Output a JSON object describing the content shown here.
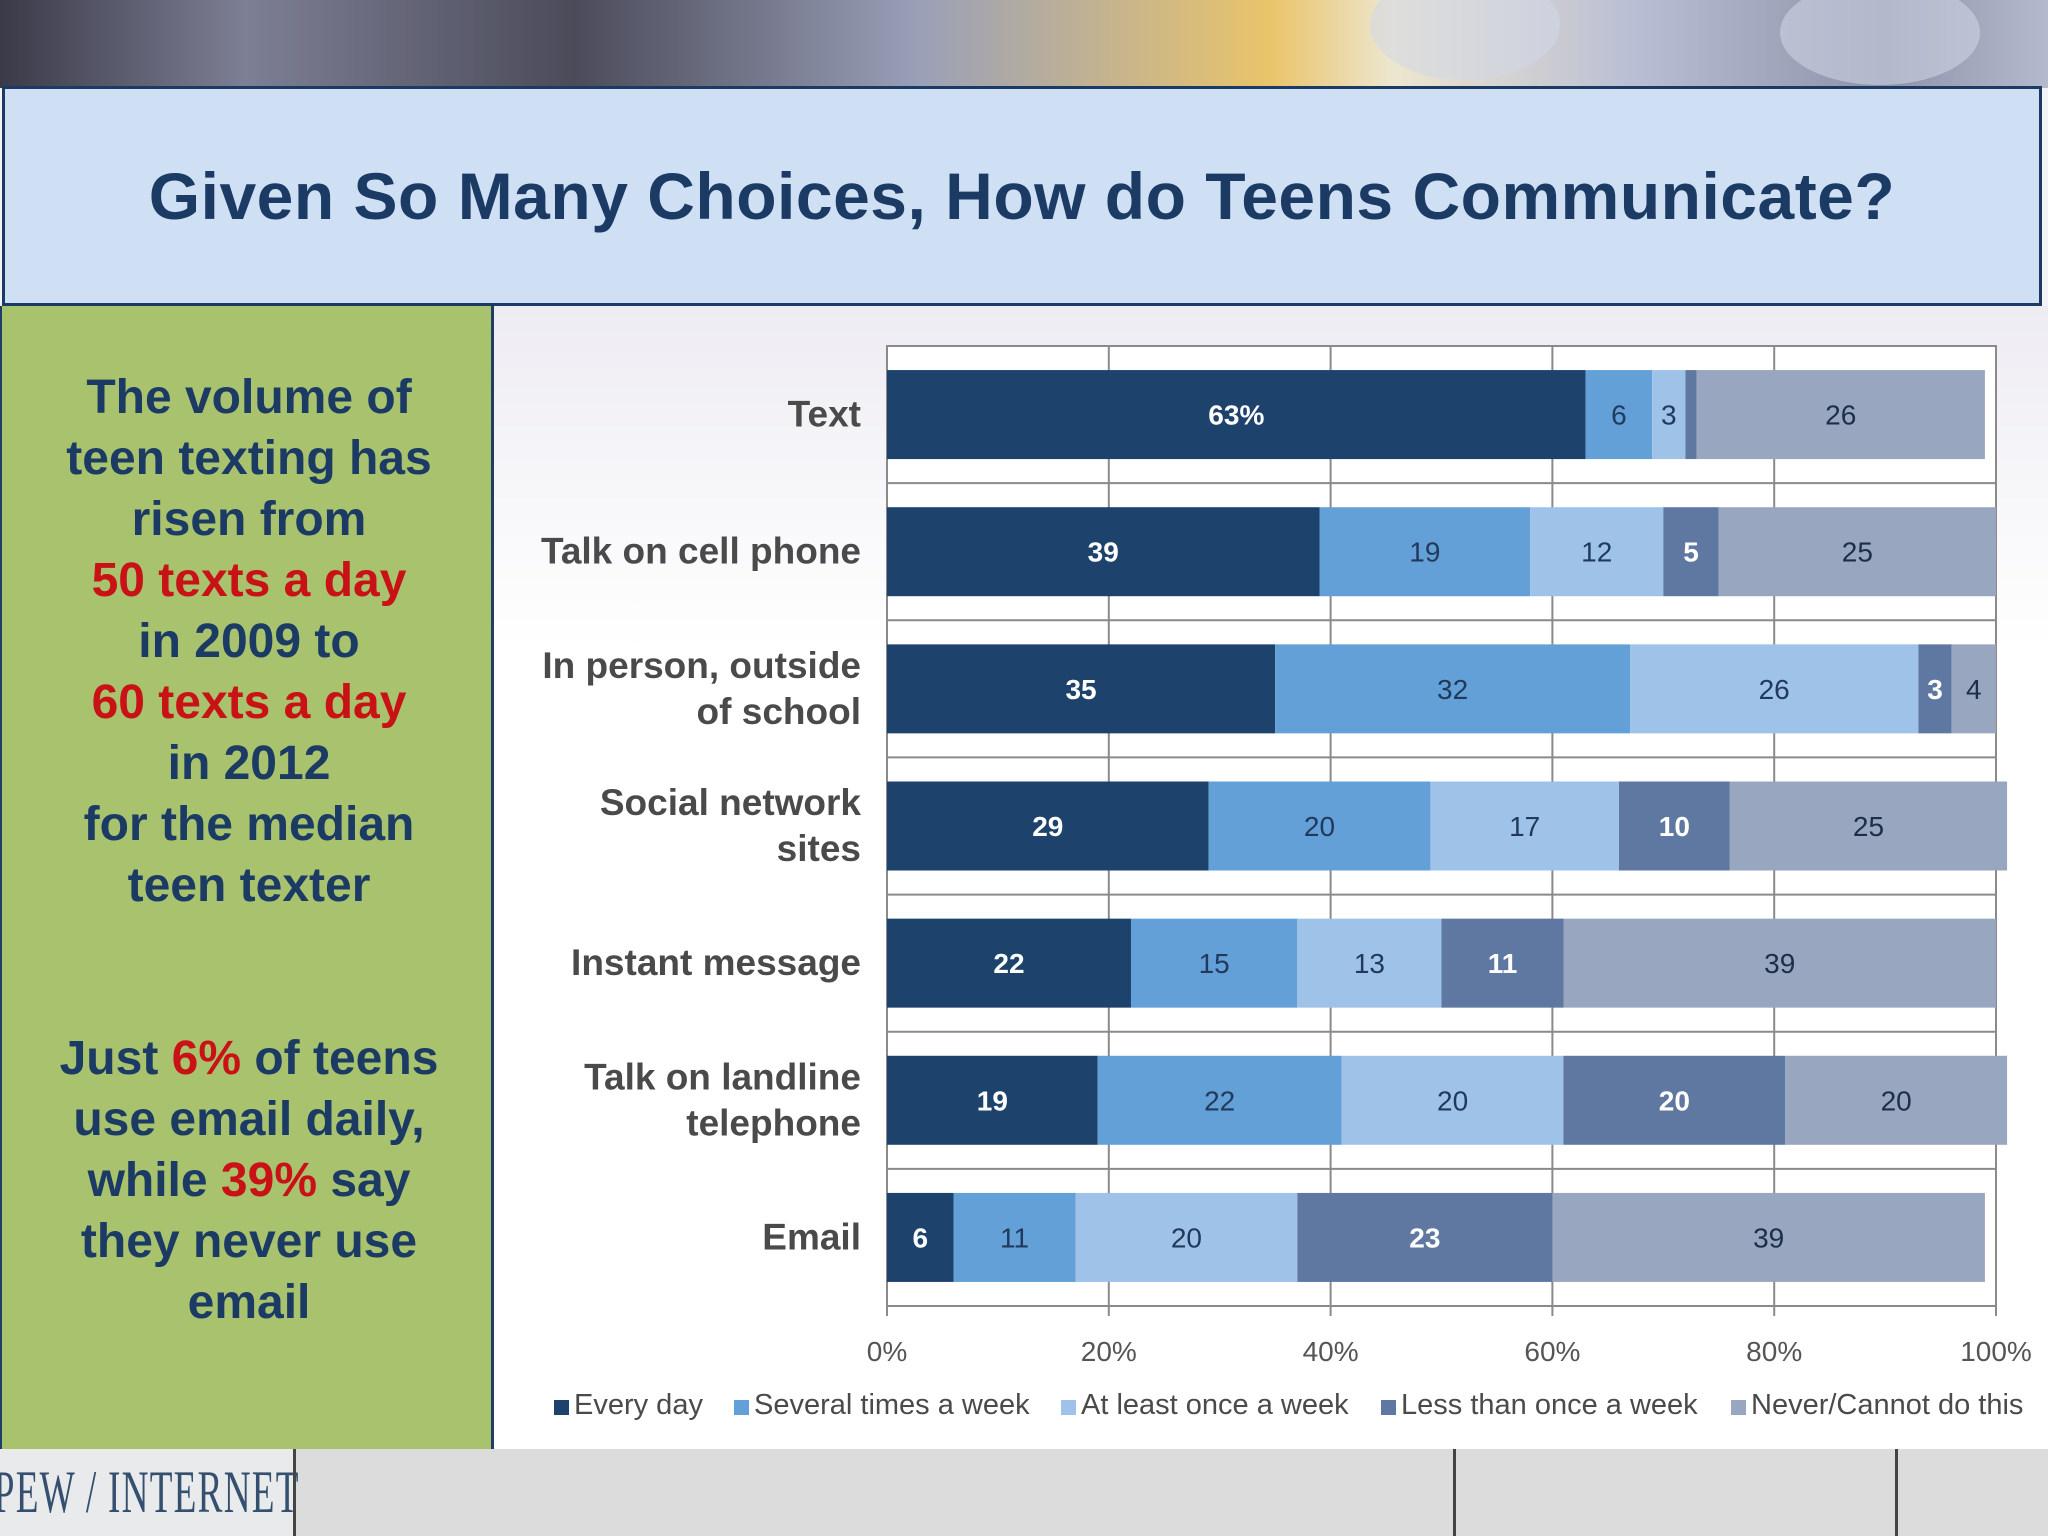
{
  "title": "Given So Many Choices, How do Teens Communicate?",
  "side_panel": {
    "block1": [
      {
        "text": "The volume of",
        "highlight": false
      },
      {
        "text": "teen texting has",
        "highlight": false
      },
      {
        "text": "risen from",
        "highlight": false
      },
      {
        "text": "50 texts a day",
        "highlight": true
      },
      {
        "text": "in 2009 to",
        "highlight": false
      },
      {
        "text": "60 texts a day",
        "highlight": true
      },
      {
        "text": "in 2012",
        "highlight": false
      },
      {
        "text": "for the median",
        "highlight": false
      },
      {
        "text": "teen texter",
        "highlight": false
      }
    ],
    "block2": [
      [
        {
          "text": "Just ",
          "highlight": false
        },
        {
          "text": "6%",
          "highlight": true
        },
        {
          "text": " of teens",
          "highlight": false
        }
      ],
      [
        {
          "text": "use email daily,",
          "highlight": false
        }
      ],
      [
        {
          "text": "while ",
          "highlight": false
        },
        {
          "text": "39%",
          "highlight": true
        },
        {
          "text": " say",
          "highlight": false
        }
      ],
      [
        {
          "text": "they never use",
          "highlight": false
        }
      ],
      [
        {
          "text": "email",
          "highlight": false
        }
      ]
    ]
  },
  "logo": "PEW / INTERNET",
  "chart_data": {
    "type": "bar",
    "orientation": "horizontal",
    "stacked": true,
    "categories": [
      [
        "Text"
      ],
      [
        "Talk on cell phone"
      ],
      [
        "In person, outside",
        "of school"
      ],
      [
        "Social network",
        "sites"
      ],
      [
        "Instant message"
      ],
      [
        "Talk on landline",
        "telephone"
      ],
      [
        "Email"
      ]
    ],
    "series": [
      {
        "name": "Every day",
        "color": "#1d426b",
        "values": [
          63,
          39,
          35,
          29,
          22,
          19,
          6
        ]
      },
      {
        "name": "Several times a week",
        "color": "#63a0d8",
        "values": [
          6,
          19,
          32,
          20,
          15,
          22,
          11
        ]
      },
      {
        "name": "At least once a week",
        "color": "#9fc3e8",
        "values": [
          3,
          12,
          26,
          17,
          13,
          20,
          20
        ]
      },
      {
        "name": "Less than once a week",
        "color": "#5e78a1",
        "values": [
          1,
          5,
          3,
          10,
          11,
          20,
          23
        ]
      },
      {
        "name": "Never/Cannot do this",
        "color": "#98a6bf",
        "values": [
          26,
          25,
          4,
          25,
          39,
          20,
          39
        ]
      }
    ],
    "data_labels": [
      [
        "63%",
        "6",
        "3",
        "",
        "26"
      ],
      [
        "39",
        "19",
        "12",
        "5",
        "25"
      ],
      [
        "35",
        "32",
        "26",
        "3",
        "4"
      ],
      [
        "29",
        "20",
        "17",
        "10",
        "25"
      ],
      [
        "22",
        "15",
        "13",
        "11",
        "39"
      ],
      [
        "19",
        "22",
        "20",
        "20",
        "20"
      ],
      [
        "6",
        "11",
        "20",
        "23",
        "39"
      ]
    ],
    "x_ticks": [
      "0%",
      "20%",
      "40%",
      "60%",
      "80%",
      "100%"
    ],
    "xlim": [
      0,
      100
    ],
    "grid": true,
    "legend_position": "bottom"
  }
}
